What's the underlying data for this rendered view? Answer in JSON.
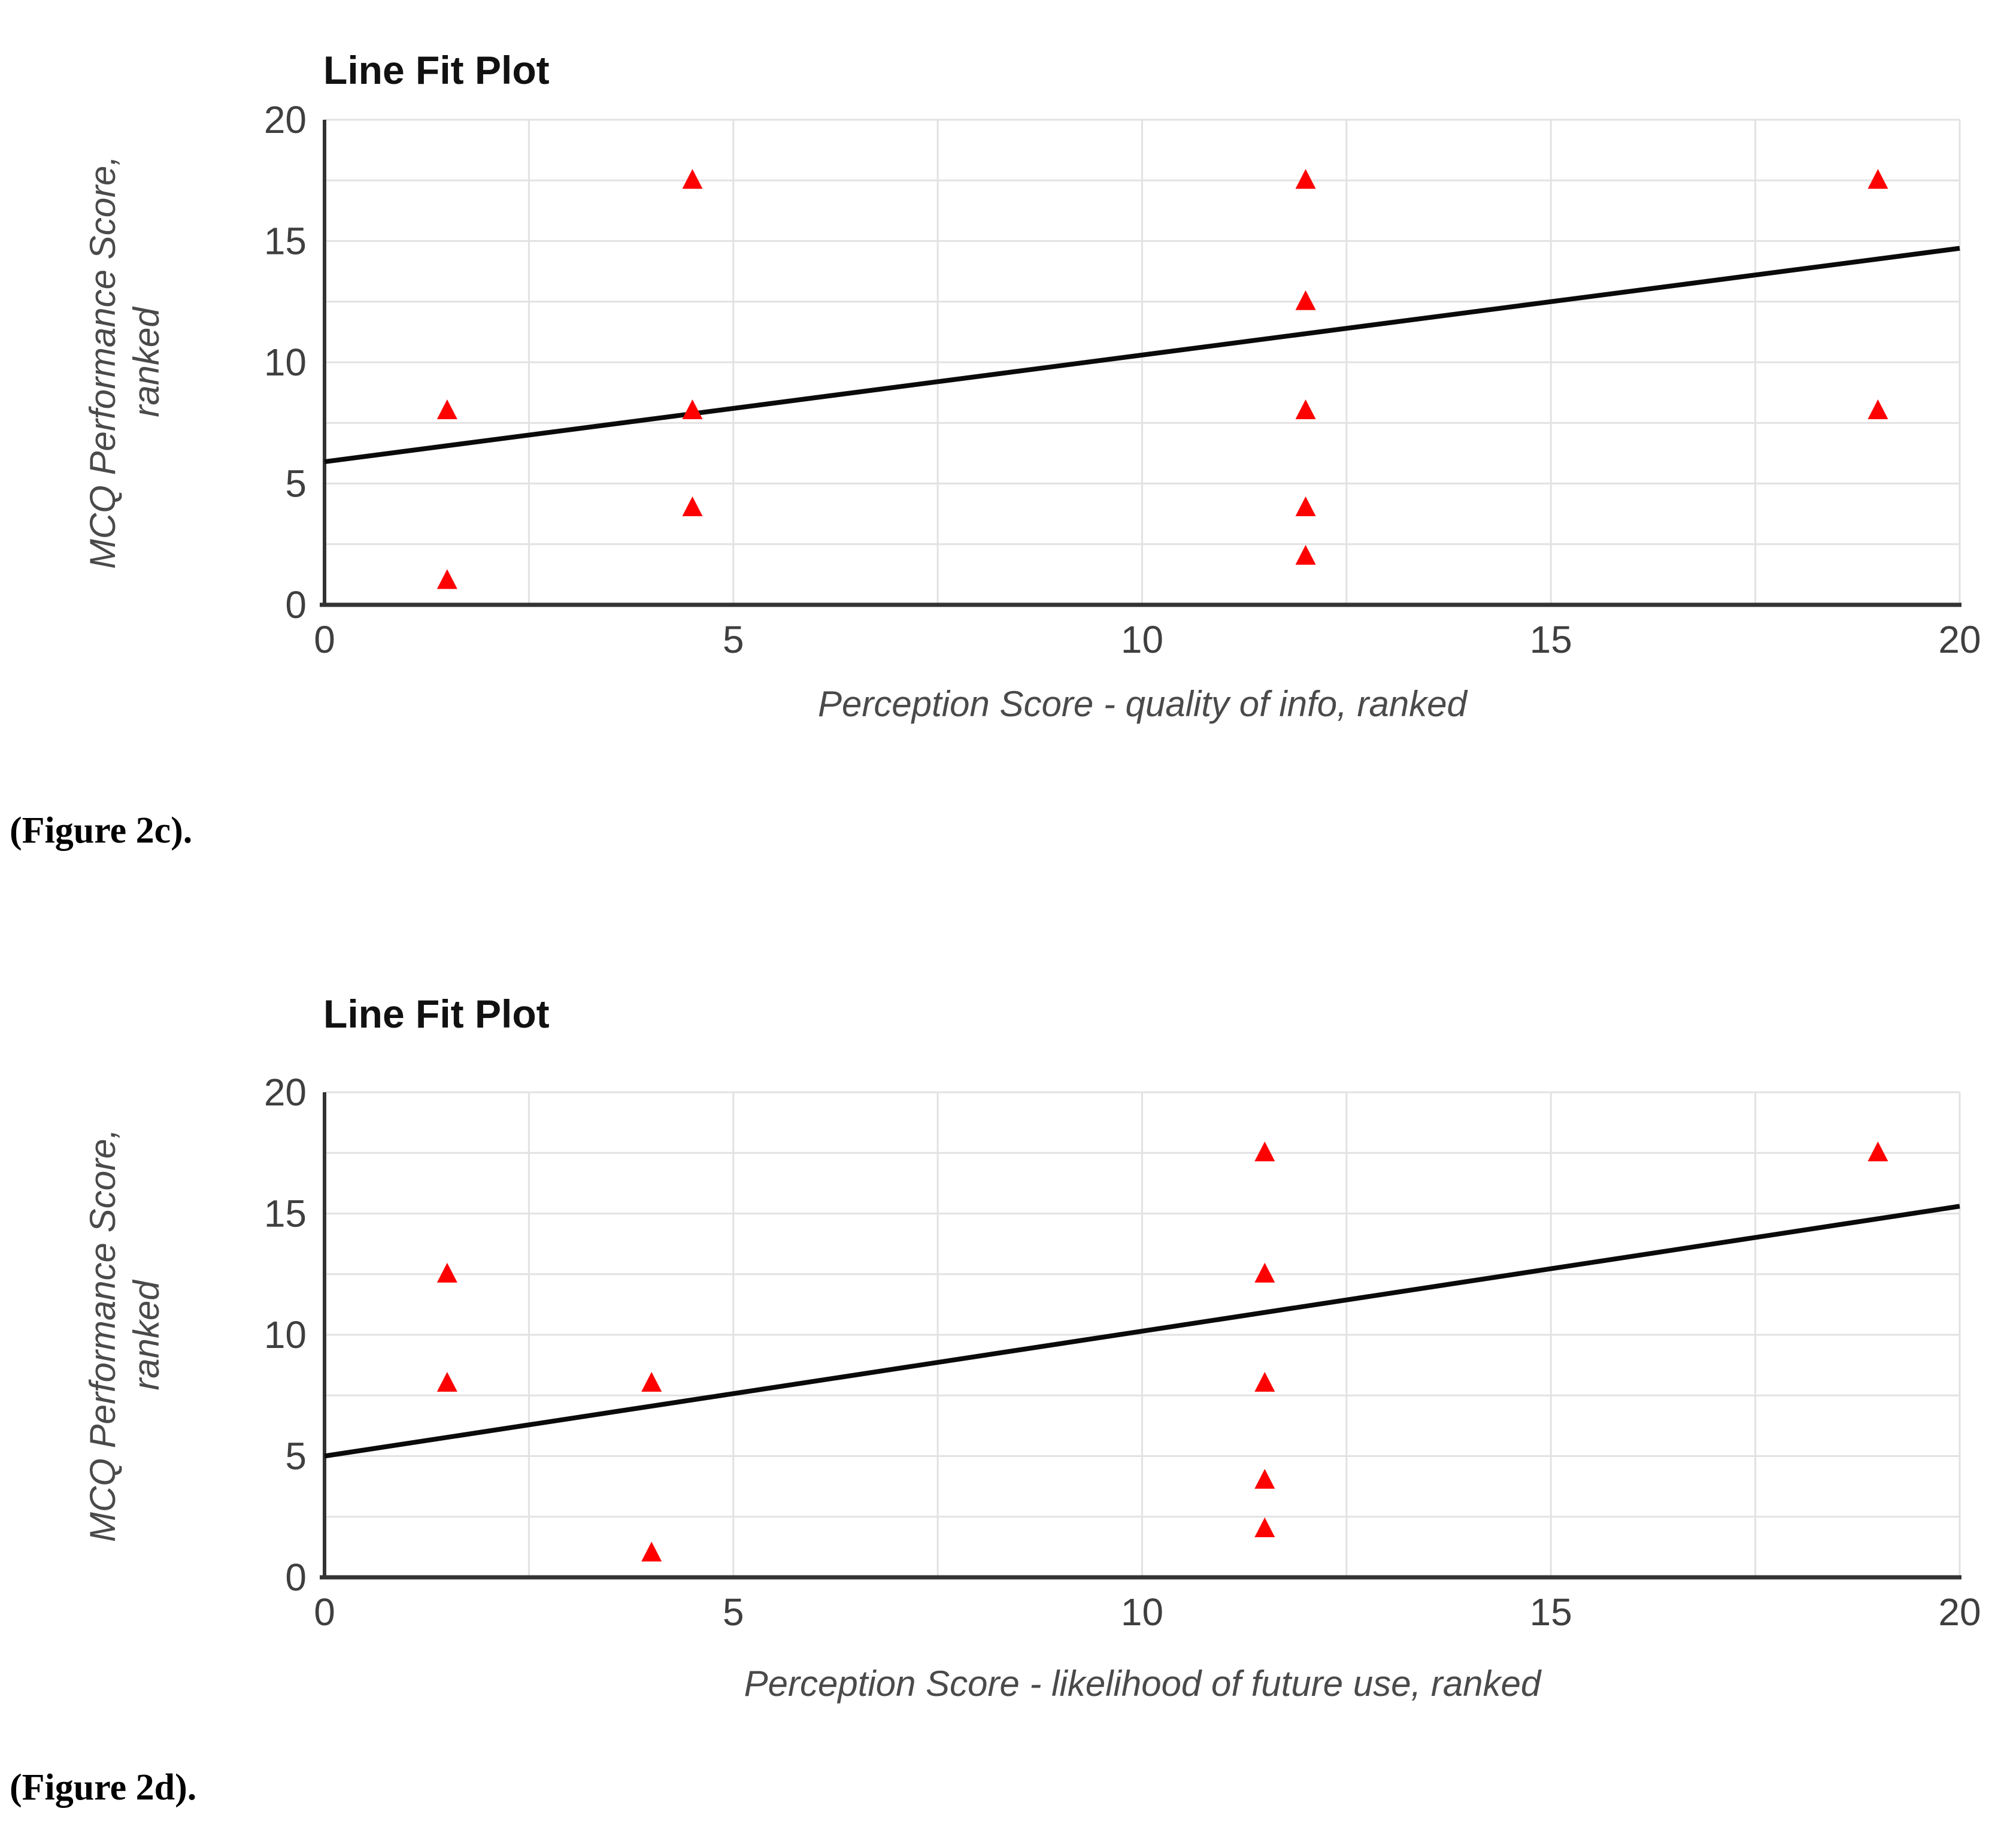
{
  "page": {
    "background": "#FFFFFF",
    "description": "Two line-fit scatter plots from a paper figure"
  },
  "style": {
    "marker_color": "#FE0000",
    "marker_shape": "triangle-up",
    "trend_color": "#0a0a0a",
    "grid_color": "#e2e2e2",
    "axis_color": "#333333",
    "tick_color": "#3f3f3f",
    "axis_title_color": "#4a4a4a",
    "title_color": "#111111"
  },
  "chart_data": [
    {
      "type": "scatter",
      "title": "Line Fit Plot",
      "xlabel": "Perception Score - quality of info, ranked",
      "ylabel": "MCQ Performance Score, ranked",
      "ylabel_lines": [
        "MCQ Performance Score,",
        "ranked"
      ],
      "caption": "(Figure 2c).",
      "xlim": [
        0,
        20
      ],
      "ylim": [
        0,
        20
      ],
      "xticks": [
        0,
        5,
        10,
        15,
        20
      ],
      "yticks": [
        0,
        5,
        10,
        15,
        20
      ],
      "gridline_step": 2.5,
      "grid": true,
      "legend_position": "none",
      "points": [
        [
          1.5,
          1
        ],
        [
          1.5,
          8
        ],
        [
          4.5,
          4
        ],
        [
          4.5,
          8
        ],
        [
          4.5,
          17.5
        ],
        [
          12,
          2
        ],
        [
          12,
          4
        ],
        [
          12,
          8
        ],
        [
          12,
          12.5
        ],
        [
          12,
          17.5
        ],
        [
          19,
          8
        ],
        [
          19,
          17.5
        ]
      ],
      "trend_line": {
        "x1": 0,
        "y1": 5.9,
        "x2": 20,
        "y2": 14.7
      }
    },
    {
      "type": "scatter",
      "title": "Line Fit Plot",
      "xlabel": "Perception Score - likelihood of future use, ranked",
      "ylabel": "MCQ Performance Score, ranked",
      "ylabel_lines": [
        "MCQ Performance Score,",
        "ranked"
      ],
      "caption": "(Figure 2d).",
      "xlim": [
        0,
        20
      ],
      "ylim": [
        0,
        20
      ],
      "xticks": [
        0,
        5,
        10,
        15,
        20
      ],
      "yticks": [
        0,
        5,
        10,
        15,
        20
      ],
      "gridline_step": 2.5,
      "grid": true,
      "legend_position": "none",
      "points": [
        [
          1.5,
          8
        ],
        [
          1.5,
          12.5
        ],
        [
          4,
          1
        ],
        [
          4,
          8
        ],
        [
          11.5,
          2
        ],
        [
          11.5,
          4
        ],
        [
          11.5,
          8
        ],
        [
          11.5,
          12.5
        ],
        [
          11.5,
          17.5
        ],
        [
          19,
          17.5
        ]
      ],
      "trend_line": {
        "x1": 0,
        "y1": 5.0,
        "x2": 20,
        "y2": 15.3
      }
    }
  ]
}
